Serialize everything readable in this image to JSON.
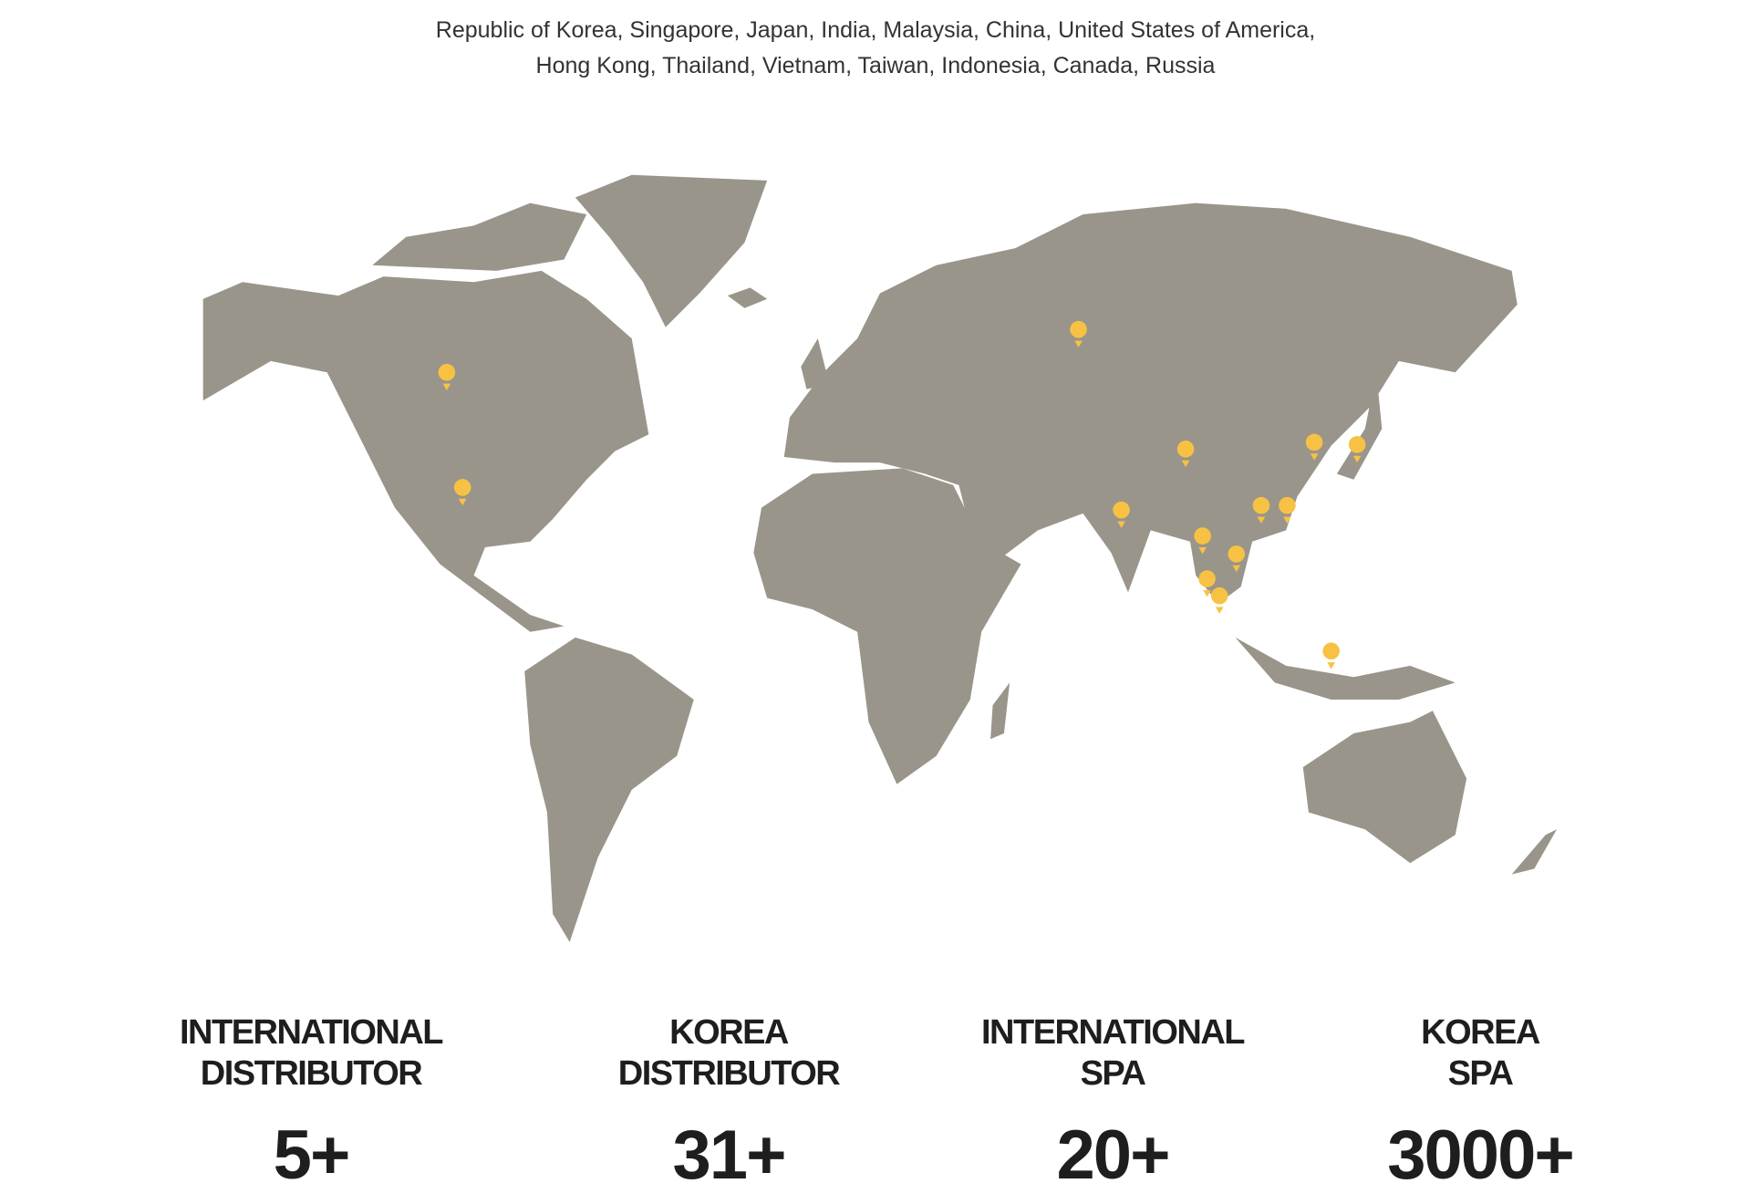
{
  "header": {
    "countries": [
      "Republic of Korea, Singapore, Japan, India, Malaysia, China, United States of America,",
      "Hong Kong, Thailand, Vietnam, Taiwan, Indonesia, Canada, Russia"
    ]
  },
  "stats": [
    {
      "label": [
        "INTERNATIONAL",
        "DISTRIBUTOR"
      ],
      "value": "5+"
    },
    {
      "label": [
        "KOREA",
        "DISTRIBUTOR"
      ],
      "value": "31+"
    },
    {
      "label": [
        "INTERNATIONAL",
        "SPA"
      ],
      "value": "20+"
    },
    {
      "label": [
        "KOREA",
        "SPA"
      ],
      "value": "3000+"
    }
  ]
}
